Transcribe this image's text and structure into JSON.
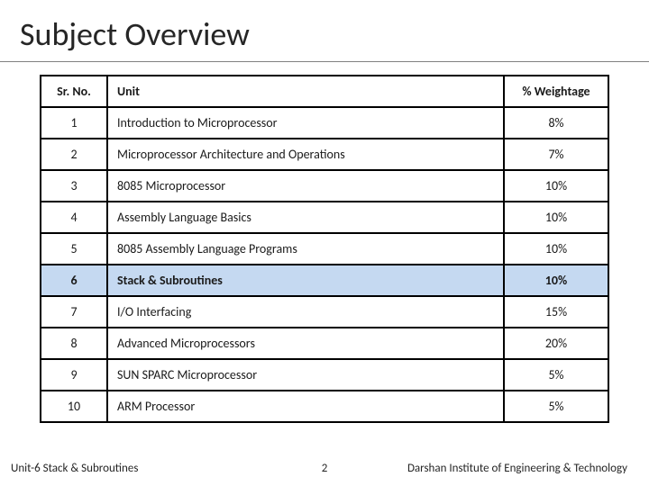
{
  "title": "Subject Overview",
  "headers": {
    "sr": "Sr. No.",
    "unit": "Unit",
    "weight": "% Weightage"
  },
  "rows": [
    {
      "sr": "1",
      "unit": "Introduction to Microprocessor",
      "weight": "8%"
    },
    {
      "sr": "2",
      "unit": "Microprocessor Architecture  and Operations",
      "weight": "7%"
    },
    {
      "sr": "3",
      "unit": "8085 Microprocessor",
      "weight": "10%"
    },
    {
      "sr": "4",
      "unit": "Assembly Language Basics",
      "weight": "10%"
    },
    {
      "sr": "5",
      "unit": "8085 Assembly Language Programs",
      "weight": "10%"
    },
    {
      "sr": "6",
      "unit": "Stack & Subroutines",
      "weight": "10%"
    },
    {
      "sr": "7",
      "unit": "I/O Interfacing",
      "weight": "15%"
    },
    {
      "sr": "8",
      "unit": "Advanced Microprocessors",
      "weight": "20%"
    },
    {
      "sr": "9",
      "unit": "SUN SPARC Microprocessor",
      "weight": "5%"
    },
    {
      "sr": "10",
      "unit": "ARM Processor",
      "weight": "5%"
    }
  ],
  "highlight_index": 5,
  "footer": {
    "left": "Unit-6 Stack & Subroutines",
    "page": "2",
    "right": "Darshan Institute of Engineering & Technology"
  },
  "style": {
    "highlight_bg": "#c5d9f1",
    "border_color": "#000000",
    "title_fontsize": 36,
    "cell_fontsize": 14,
    "footer_fontsize": 13
  }
}
